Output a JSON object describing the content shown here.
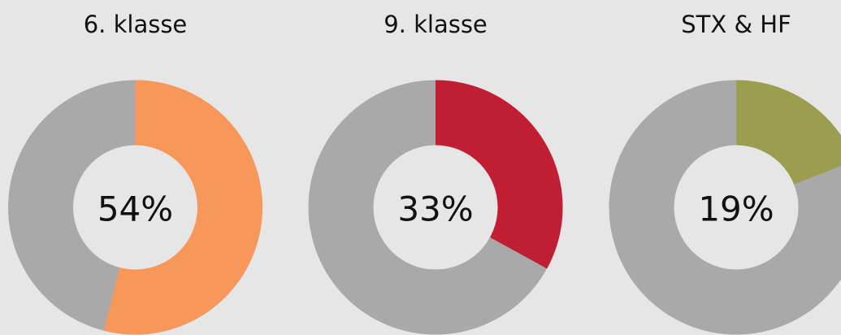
{
  "chart_data": [
    {
      "type": "pie",
      "title": "6. klasse",
      "values": [
        54
      ],
      "value_labels": [
        "54%"
      ],
      "color": "#f7975a",
      "rest_color": "#a9a9a9"
    },
    {
      "type": "pie",
      "title": "9. klasse",
      "values": [
        33
      ],
      "value_labels": [
        "33%"
      ],
      "color": "#c01f33",
      "rest_color": "#a9a9a9"
    },
    {
      "type": "pie",
      "title": "STX & HF",
      "values": [
        19
      ],
      "value_labels": [
        "19%"
      ],
      "color": "#9c9e4f",
      "rest_color": "#a9a9a9"
    }
  ]
}
